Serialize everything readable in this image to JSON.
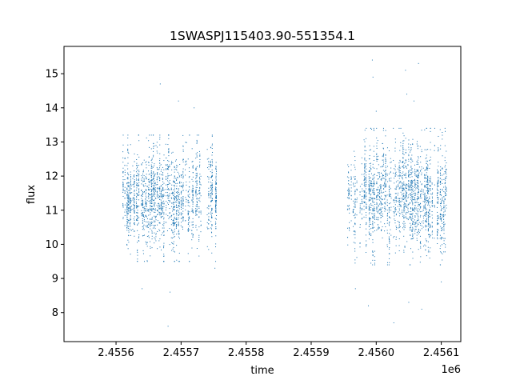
{
  "chart_data": {
    "type": "scatter",
    "title": "1SWASPJ115403.90-551354.1",
    "xlabel": "time",
    "ylabel": "flux",
    "x_offset_label": "1e6",
    "xlim": [
      2455520,
      2456130
    ],
    "ylim": [
      7.15,
      15.8
    ],
    "x_ticks": [
      2455600,
      2455700,
      2455800,
      2455900,
      2456000,
      2456100
    ],
    "x_tick_labels": [
      "2.4556",
      "2.4557",
      "2.4558",
      "2.4559",
      "2.4560",
      "2.4561"
    ],
    "y_ticks": [
      8,
      9,
      10,
      11,
      12,
      13,
      14,
      15
    ],
    "y_tick_labels": [
      "8",
      "9",
      "10",
      "11",
      "12",
      "13",
      "14",
      "15"
    ],
    "grid": false,
    "marker_color": "#1f77b4",
    "series": [
      {
        "observing_season_1": {
          "x_range": [
            2455610,
            2455755
          ],
          "flux_core_range": [
            9.7,
            13.0
          ],
          "outliers": [
            {
              "x": 2455640,
              "y": 8.7
            },
            {
              "x": 2455668,
              "y": 14.7
            },
            {
              "x": 2455680,
              "y": 7.6
            },
            {
              "x": 2455683,
              "y": 8.6
            },
            {
              "x": 2455696,
              "y": 14.2
            },
            {
              "x": 2455720,
              "y": 14.0
            },
            {
              "x": 2455752,
              "y": 9.3
            }
          ]
        },
        "observing_season_2": {
          "x_range": [
            2455955,
            2456108
          ],
          "flux_core_range": [
            9.6,
            13.2
          ],
          "outliers": [
            {
              "x": 2455968,
              "y": 8.7
            },
            {
              "x": 2455988,
              "y": 8.2
            },
            {
              "x": 2455994,
              "y": 15.4
            },
            {
              "x": 2455995,
              "y": 14.9
            },
            {
              "x": 2456000,
              "y": 13.9
            },
            {
              "x": 2456027,
              "y": 7.7
            },
            {
              "x": 2456045,
              "y": 15.1
            },
            {
              "x": 2456047,
              "y": 14.4
            },
            {
              "x": 2456050,
              "y": 8.3
            },
            {
              "x": 2456058,
              "y": 14.2
            },
            {
              "x": 2456065,
              "y": 15.3
            },
            {
              "x": 2456070,
              "y": 8.1
            },
            {
              "x": 2456100,
              "y": 8.9
            }
          ]
        }
      }
    ]
  }
}
